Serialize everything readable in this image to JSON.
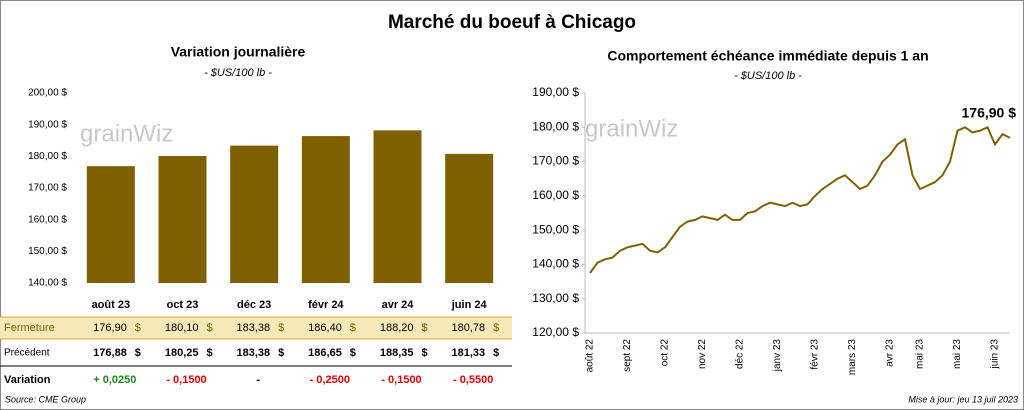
{
  "title": "Marché du boeuf à Chicago",
  "watermark": "grainWiz",
  "chart_data": [
    {
      "type": "bar",
      "title": "Variation journalière",
      "subtitle": "- $US/100 lb -",
      "categories": [
        "août 23",
        "oct 23",
        "déc 23",
        "févr 24",
        "avr 24",
        "juin 24"
      ],
      "values": [
        176.9,
        180.1,
        183.38,
        186.4,
        188.2,
        180.78
      ],
      "value_labels": [
        "176,90",
        "180,10",
        "183,38",
        "186,40",
        "188,20",
        "180,78"
      ],
      "color": "#7f6000",
      "grid": false,
      "ylim": [
        140,
        200
      ],
      "yticks": [
        {
          "value": 140,
          "label": "140,00 $"
        },
        {
          "value": 150,
          "label": "150,00 $"
        },
        {
          "value": 160,
          "label": "160,00 $"
        },
        {
          "value": 170,
          "label": "170,00 $"
        },
        {
          "value": 180,
          "label": "180,00 $"
        },
        {
          "value": 190,
          "label": "190,00 $"
        },
        {
          "value": 200,
          "label": "200,00 $"
        }
      ]
    },
    {
      "type": "line",
      "title": "Comportement  échéance immédiate depuis 1 an",
      "subtitle": "- $US/100 lb -",
      "categories": [
        "août 22",
        null,
        null,
        null,
        null,
        "sept 22",
        null,
        null,
        null,
        null,
        "oct 22",
        null,
        null,
        null,
        null,
        "nov 22",
        null,
        null,
        null,
        null,
        "déc 22",
        null,
        null,
        null,
        null,
        "janv 23",
        null,
        null,
        null,
        null,
        "févr 23",
        null,
        null,
        null,
        null,
        "mars 23",
        null,
        null,
        null,
        null,
        "avr 23",
        null,
        null,
        null,
        "mai 23",
        null,
        null,
        null,
        null,
        "mai 23",
        null,
        null,
        null,
        null,
        "juin 23",
        null,
        null
      ],
      "values": [
        137.5,
        140.5,
        141.5,
        142,
        144,
        145,
        145.5,
        146,
        144,
        143.5,
        145,
        148,
        151,
        152.5,
        153,
        154,
        153.5,
        153,
        154.5,
        153,
        153,
        155,
        155.5,
        157,
        158,
        157.5,
        157,
        158,
        157,
        157.5,
        160,
        162,
        163.5,
        165,
        166,
        164,
        162,
        163,
        166,
        170,
        172,
        175,
        176.5,
        166,
        162,
        163,
        164,
        166,
        170,
        179,
        180,
        178.5,
        179,
        180,
        175,
        178,
        176.9
      ],
      "annotation": "176,90 $",
      "color": "#806000",
      "grid": false,
      "ylim": [
        120,
        190
      ],
      "yticks": [
        {
          "value": 120,
          "label": "120,00 $"
        },
        {
          "value": 130,
          "label": "130,00 $"
        },
        {
          "value": 140,
          "label": "140,00 $"
        },
        {
          "value": 150,
          "label": "150,00 $"
        },
        {
          "value": 160,
          "label": "160,00 $"
        },
        {
          "value": 170,
          "label": "170,00 $"
        },
        {
          "value": 180,
          "label": "180,00 $"
        },
        {
          "value": 190,
          "label": "190,00 $"
        }
      ]
    }
  ],
  "table": {
    "unit": "$",
    "rows": [
      {
        "label": "Fermeture"
      },
      {
        "label": "Précédent",
        "values": [
          "176,88",
          "180,25",
          "183,38",
          "186,65",
          "188,35",
          "181,33"
        ]
      },
      {
        "label": "Variation",
        "values": [
          "+ 0,0250",
          "- 0,1500",
          "-",
          "- 0,2500",
          "- 0,1500",
          "- 0,5500"
        ],
        "colors": [
          "#1e8a1e",
          "#e00000",
          "#000000",
          "#e00000",
          "#e00000",
          "#e00000"
        ]
      }
    ]
  },
  "source": "Source: CME Group",
  "updated": "Mise à jour: jeu 13 juil 2023"
}
